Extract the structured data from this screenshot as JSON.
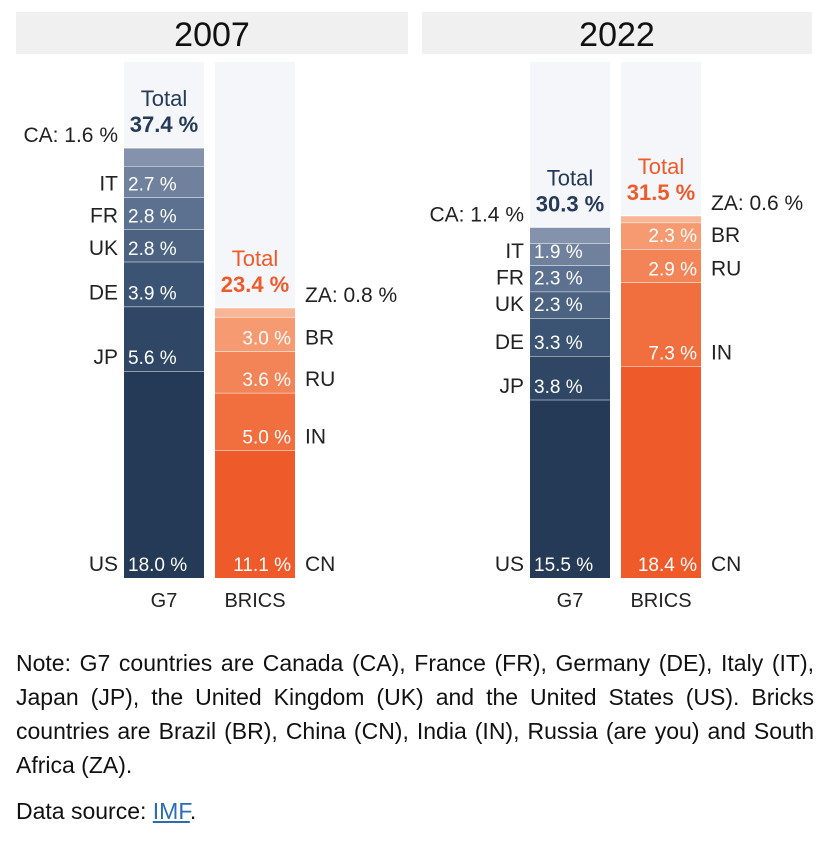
{
  "chart_data": [
    {
      "type": "bar",
      "stacked": true,
      "title": "2007",
      "categories": [
        "G7",
        "BRICS"
      ],
      "ymax_percent": 37.4,
      "g7": {
        "segments": [
          {
            "code": "US",
            "value": 18.0,
            "label": "18.0 %"
          },
          {
            "code": "JP",
            "value": 5.6,
            "label": "5.6 %"
          },
          {
            "code": "DE",
            "value": 3.9,
            "label": "3.9 %"
          },
          {
            "code": "UK",
            "value": 2.8,
            "label": "2.8 %"
          },
          {
            "code": "FR",
            "value": 2.8,
            "label": "2.8 %"
          },
          {
            "code": "IT",
            "value": 2.7,
            "label": "2.7 %"
          },
          {
            "code": "CA",
            "value": 1.6,
            "label": "",
            "outside_label": "CA: 1.6 %"
          }
        ],
        "total_word": "Total",
        "total_label": "37.4 %"
      },
      "brics": {
        "segments": [
          {
            "code": "CN",
            "value": 11.1,
            "label": "11.1 %"
          },
          {
            "code": "IN",
            "value": 5.0,
            "label": "5.0 %"
          },
          {
            "code": "RU",
            "value": 3.6,
            "label": "3.6 %"
          },
          {
            "code": "BR",
            "value": 3.0,
            "label": "3.0 %"
          },
          {
            "code": "ZA",
            "value": 0.8,
            "label": "",
            "outside_label": "ZA: 0.8 %"
          }
        ],
        "total_word": "Total",
        "total_label": "23.4 %"
      }
    },
    {
      "type": "bar",
      "stacked": true,
      "title": "2022",
      "categories": [
        "G7",
        "BRICS"
      ],
      "ymax_percent": 37.4,
      "g7": {
        "segments": [
          {
            "code": "US",
            "value": 15.5,
            "label": "15.5 %"
          },
          {
            "code": "JP",
            "value": 3.8,
            "label": "3.8 %"
          },
          {
            "code": "DE",
            "value": 3.3,
            "label": "3.3 %"
          },
          {
            "code": "UK",
            "value": 2.3,
            "label": "2.3 %"
          },
          {
            "code": "FR",
            "value": 2.3,
            "label": "2.3 %"
          },
          {
            "code": "IT",
            "value": 1.9,
            "label": "1.9 %"
          },
          {
            "code": "CA",
            "value": 1.4,
            "label": "",
            "outside_label": "CA: 1.4 %"
          }
        ],
        "total_word": "Total",
        "total_label": "30.3 %"
      },
      "brics": {
        "segments": [
          {
            "code": "CN",
            "value": 18.4,
            "label": "18.4 %"
          },
          {
            "code": "IN",
            "value": 7.3,
            "label": "7.3 %"
          },
          {
            "code": "RU",
            "value": 2.9,
            "label": "2.9 %"
          },
          {
            "code": "BR",
            "value": 2.3,
            "label": "2.3 %"
          },
          {
            "code": "ZA",
            "value": 0.6,
            "label": "",
            "outside_label": "ZA: 0.6 %"
          }
        ],
        "total_word": "Total",
        "total_label": "31.5 %"
      }
    }
  ],
  "colors": {
    "g7": [
      "#243a56",
      "#2f4765",
      "#3c5473",
      "#4b6281",
      "#5c718f",
      "#6f819d",
      "#8592ab"
    ],
    "brics": [
      "#ef5a2a",
      "#f16e3f",
      "#f38457",
      "#f69a71",
      "#f8b696"
    ],
    "g7_total_text": "#243a56",
    "brics_total_text": "#ef5a2a",
    "title_bg": "#f0f0f0",
    "column_bg": "#f4f6f9",
    "link": "#2a6db5"
  },
  "note": "Note: G7 countries are Canada (CA), France (FR), Germany (DE), Italy (IT), Japan (JP), the United Kingdom (UK) and the United States (US). Bricks countries are Brazil (BR), China (CN), India (IN), Russia (are you) and South Africa (ZA).",
  "source": {
    "prefix": "Data source: ",
    "link_text": "IMF",
    "suffix": "."
  }
}
